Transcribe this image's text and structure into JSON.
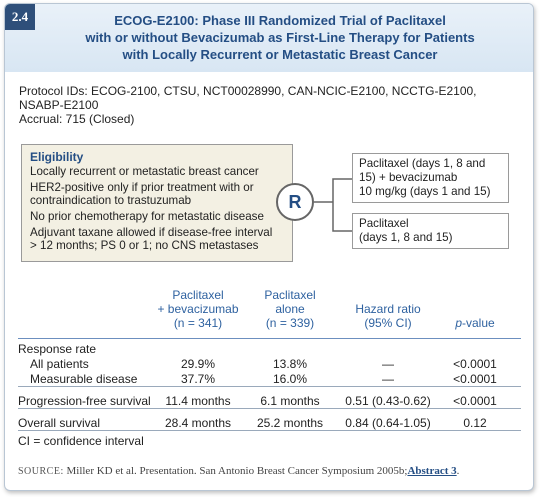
{
  "badge": "2.4",
  "header": {
    "title_lines": [
      "ECOG-E2100: Phase III Randomized Trial of Paclitaxel",
      "with or without Bevacizumab as First-Line Therapy for Patients",
      "with Locally Recurrent or Metastatic Breast Cancer"
    ]
  },
  "protocol": {
    "id_lines": [
      "Protocol IDs: ECOG-2100, CTSU, NCT00028990, CAN-NCIC-E2100, NCCTG-E2100,",
      "NSABP-E2100"
    ],
    "accrual": "Accrual: 715 (Closed)"
  },
  "eligibility": {
    "heading": "Eligibility",
    "items": [
      [
        "Locally recurrent or metastatic breast cancer"
      ],
      [
        "HER2-positive only if prior treatment with or",
        "contraindication to trastuzumab"
      ],
      [
        "No prior chemotherapy for metastatic disease"
      ],
      [
        "Adjuvant taxane allowed if disease-free interval",
        "> 12 months; PS 0 or 1; no CNS metastases"
      ]
    ]
  },
  "randomization": "R",
  "arms": [
    [
      "Paclitaxel (days 1, 8 and",
      "15) + bevacizumab",
      "10 mg/kg (days 1 and 15)"
    ],
    [
      "Paclitaxel",
      "(days 1, 8 and 15)"
    ]
  ],
  "table": {
    "columns": [
      [
        "Paclitaxel",
        "+ bevacizumab",
        "(n = 341)"
      ],
      [
        "Paclitaxel",
        "alone",
        "(n = 339)"
      ],
      [
        "Hazard ratio",
        "(95% CI)"
      ]
    ],
    "pvalue_header": {
      "italic": "p",
      "rest": "-value"
    },
    "groups": [
      {
        "label": "Response rate",
        "subrows": [
          {
            "label": "All patients",
            "cells": [
              "29.9%",
              "13.8%",
              "—",
              "<0.0001"
            ]
          },
          {
            "label": "Measurable disease",
            "cells": [
              "37.7%",
              "16.0%",
              "—",
              "<0.0001"
            ]
          }
        ]
      },
      {
        "label": "Progression-free survival",
        "cells": [
          "11.4 months",
          "6.1 months",
          "0.51 (0.43-0.62)",
          "<0.0001"
        ]
      },
      {
        "label": "Overall survival",
        "cells": [
          "28.4 months",
          "25.2 months",
          "0.84 (0.64-1.05)",
          "0.12"
        ]
      }
    ]
  },
  "footnote": "CI = confidence interval",
  "source": {
    "label": "SOURCE:",
    "text": "Miller KD et al. Presentation. San Antonio Breast Cancer Symposium 2005b;",
    "link": "Abstract 3",
    "end": "."
  }
}
